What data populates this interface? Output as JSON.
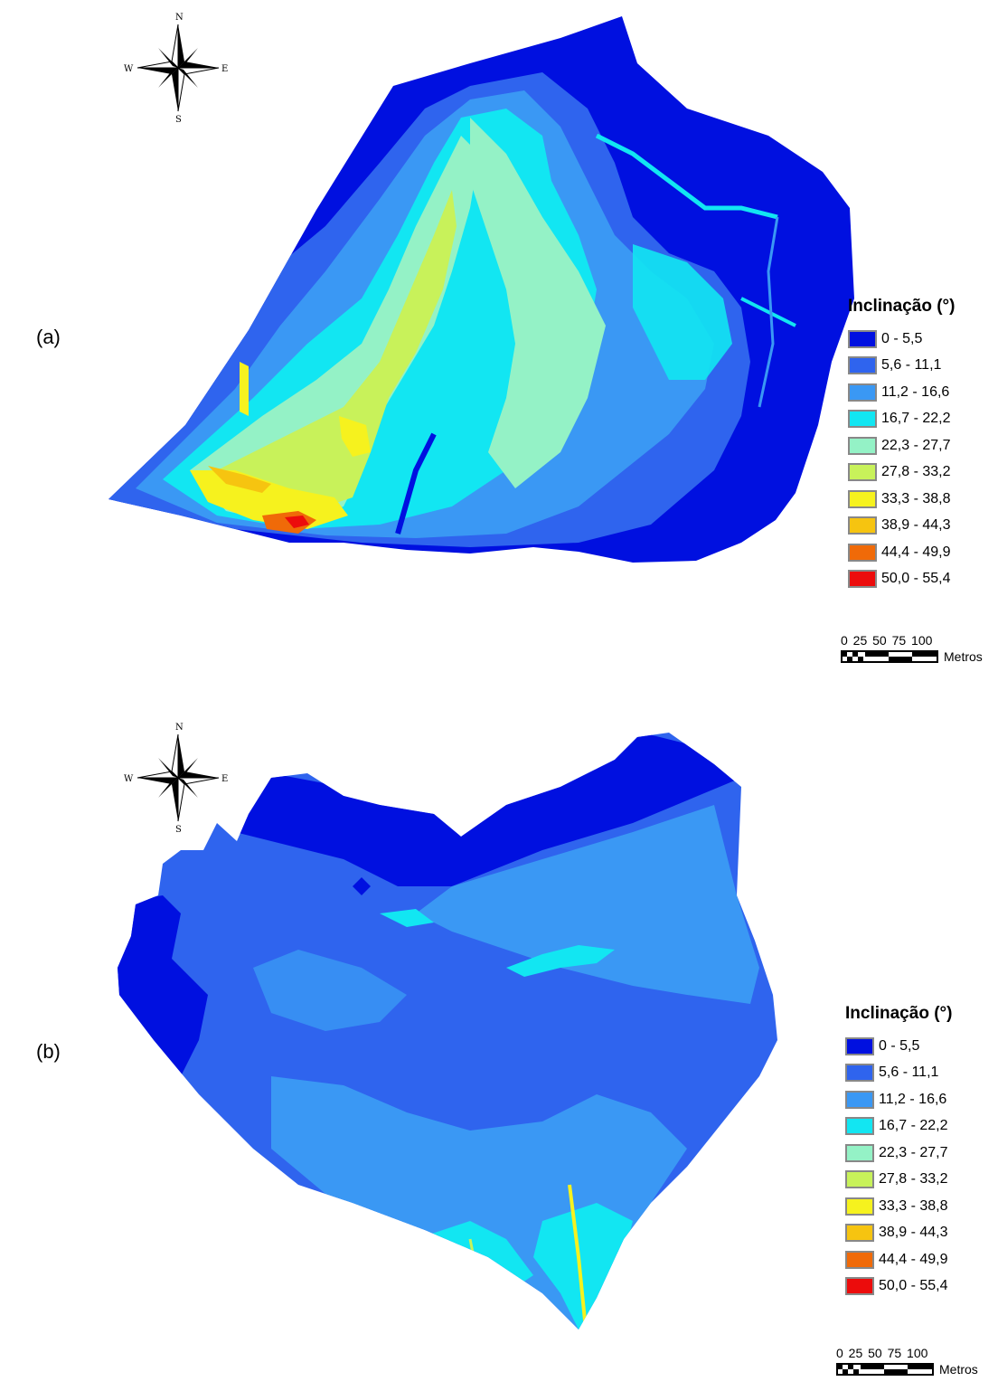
{
  "panels": [
    {
      "id": "a",
      "label": "(a)",
      "compass": {
        "n": "N",
        "s": "S",
        "e": "E",
        "w": "W"
      },
      "legend": {
        "title": "Inclinação (°)",
        "classes": [
          {
            "label": "0 - 5,5",
            "color": "#0010e0"
          },
          {
            "label": "5,6 - 11,1",
            "color": "#2f64ee"
          },
          {
            "label": "11,2 - 16,6",
            "color": "#3a98f4"
          },
          {
            "label": "16,7 - 22,2",
            "color": "#12e6f2"
          },
          {
            "label": "22,3 - 27,7",
            "color": "#94f2c6"
          },
          {
            "label": "27,8 - 33,2",
            "color": "#c8f25a"
          },
          {
            "label": "33,3 - 38,8",
            "color": "#f6f21e"
          },
          {
            "label": "38,9 - 44,3",
            "color": "#f6c410"
          },
          {
            "label": "44,4 - 49,9",
            "color": "#f06a08"
          },
          {
            "label": "50,0 - 55,4",
            "color": "#ec0c0c"
          }
        ]
      },
      "scalebar": {
        "ticks": "0 25 50 75 100",
        "unit": "Metros"
      }
    },
    {
      "id": "b",
      "label": "(b)",
      "compass": {
        "n": "N",
        "s": "S",
        "e": "E",
        "w": "W"
      },
      "legend": {
        "title": "Inclinação (°)",
        "classes": [
          {
            "label": "0 - 5,5",
            "color": "#0010e0"
          },
          {
            "label": "5,6 - 11,1",
            "color": "#2f64ee"
          },
          {
            "label": "11,2 - 16,6",
            "color": "#3a98f4"
          },
          {
            "label": "16,7 - 22,2",
            "color": "#12e6f2"
          },
          {
            "label": "22,3 - 27,7",
            "color": "#94f2c6"
          },
          {
            "label": "27,8 - 33,2",
            "color": "#c8f25a"
          },
          {
            "label": "33,3 - 38,8",
            "color": "#f6f21e"
          },
          {
            "label": "38,9 - 44,3",
            "color": "#f6c410"
          },
          {
            "label": "44,4 - 49,9",
            "color": "#f06a08"
          },
          {
            "label": "50,0 - 55,4",
            "color": "#ec0c0c"
          }
        ]
      },
      "scalebar": {
        "ticks": "0 25 50 75 100",
        "unit": "Metros"
      }
    }
  ]
}
